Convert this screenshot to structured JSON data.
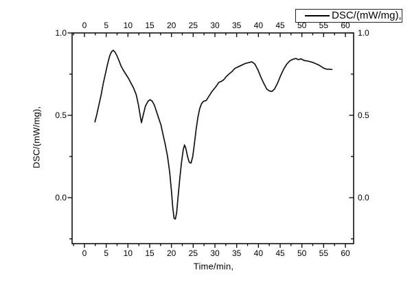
{
  "figure": {
    "background": "#ffffff",
    "frame_color": "#000000",
    "curve_color": "#111111"
  },
  "chart_data": {
    "type": "line",
    "title": "",
    "xlabel": "Time/min,",
    "ylabel": "DSC/(mW/mg),",
    "grid": false,
    "legend": {
      "position": "top-right",
      "entries": [
        {
          "label": "DSC/(mW/mg),",
          "color": "#000000",
          "marker": "line"
        }
      ]
    },
    "x_axis": {
      "range": [
        -2.85,
        61.9
      ],
      "ticks_major": [
        0,
        5,
        10,
        15,
        20,
        25,
        30,
        35,
        40,
        45,
        50,
        55,
        60
      ],
      "tick_labels": [
        "0",
        "5",
        "10",
        "15",
        "20",
        "25",
        "30",
        "35",
        "40",
        "45",
        "50",
        "55",
        "60"
      ],
      "ticks_minor": [
        -2.5,
        2.5,
        7.5,
        12.5,
        17.5,
        22.5,
        27.5,
        32.5,
        37.5,
        42.5,
        47.5,
        52.5,
        57.5
      ],
      "mirrored_top_axis": true
    },
    "y_axis": {
      "range": [
        -0.28,
        1.0
      ],
      "ticks_major": [
        0.0,
        0.5,
        1.0
      ],
      "tick_labels": [
        "0.0",
        "0.5",
        "1.0"
      ],
      "ticks_minor": [
        -0.25,
        0.25,
        0.75
      ],
      "mirrored_right_axis": true
    },
    "series": [
      {
        "name": "DSC/(mW/mg),",
        "points": [
          [
            2.4,
            0.46
          ],
          [
            2.8,
            0.5
          ],
          [
            3.3,
            0.56
          ],
          [
            3.8,
            0.62
          ],
          [
            4.3,
            0.69
          ],
          [
            4.8,
            0.75
          ],
          [
            5.3,
            0.81
          ],
          [
            5.8,
            0.86
          ],
          [
            6.2,
            0.885
          ],
          [
            6.6,
            0.895
          ],
          [
            7.0,
            0.885
          ],
          [
            7.4,
            0.865
          ],
          [
            7.9,
            0.835
          ],
          [
            8.4,
            0.8
          ],
          [
            8.9,
            0.775
          ],
          [
            9.5,
            0.75
          ],
          [
            10.1,
            0.725
          ],
          [
            10.7,
            0.695
          ],
          [
            11.3,
            0.665
          ],
          [
            11.9,
            0.625
          ],
          [
            12.4,
            0.565
          ],
          [
            12.8,
            0.5
          ],
          [
            13.1,
            0.455
          ],
          [
            13.5,
            0.5
          ],
          [
            14.0,
            0.555
          ],
          [
            14.6,
            0.585
          ],
          [
            15.1,
            0.595
          ],
          [
            15.6,
            0.585
          ],
          [
            16.1,
            0.56
          ],
          [
            16.6,
            0.52
          ],
          [
            17.1,
            0.48
          ],
          [
            17.6,
            0.44
          ],
          [
            18.1,
            0.38
          ],
          [
            18.6,
            0.32
          ],
          [
            19.1,
            0.25
          ],
          [
            19.6,
            0.155
          ],
          [
            20.0,
            0.04
          ],
          [
            20.3,
            -0.06
          ],
          [
            20.6,
            -0.125
          ],
          [
            20.9,
            -0.13
          ],
          [
            21.2,
            -0.09
          ],
          [
            21.5,
            0.0
          ],
          [
            21.9,
            0.11
          ],
          [
            22.3,
            0.21
          ],
          [
            22.7,
            0.29
          ],
          [
            23.0,
            0.32
          ],
          [
            23.3,
            0.3
          ],
          [
            23.7,
            0.25
          ],
          [
            24.1,
            0.215
          ],
          [
            24.5,
            0.21
          ],
          [
            24.9,
            0.25
          ],
          [
            25.3,
            0.33
          ],
          [
            25.7,
            0.42
          ],
          [
            26.1,
            0.49
          ],
          [
            26.5,
            0.54
          ],
          [
            26.9,
            0.57
          ],
          [
            27.4,
            0.585
          ],
          [
            28.0,
            0.59
          ],
          [
            28.6,
            0.615
          ],
          [
            29.2,
            0.64
          ],
          [
            29.8,
            0.66
          ],
          [
            30.4,
            0.68
          ],
          [
            30.9,
            0.7
          ],
          [
            31.4,
            0.705
          ],
          [
            32.0,
            0.715
          ],
          [
            32.6,
            0.735
          ],
          [
            33.2,
            0.75
          ],
          [
            33.9,
            0.765
          ],
          [
            34.6,
            0.785
          ],
          [
            35.4,
            0.795
          ],
          [
            36.2,
            0.805
          ],
          [
            37.0,
            0.815
          ],
          [
            37.8,
            0.82
          ],
          [
            38.5,
            0.825
          ],
          [
            39.2,
            0.81
          ],
          [
            39.9,
            0.775
          ],
          [
            40.6,
            0.73
          ],
          [
            41.3,
            0.69
          ],
          [
            41.9,
            0.66
          ],
          [
            42.5,
            0.648
          ],
          [
            43.1,
            0.645
          ],
          [
            43.7,
            0.66
          ],
          [
            44.4,
            0.695
          ],
          [
            45.1,
            0.74
          ],
          [
            45.8,
            0.78
          ],
          [
            46.5,
            0.81
          ],
          [
            47.2,
            0.83
          ],
          [
            47.9,
            0.84
          ],
          [
            48.6,
            0.845
          ],
          [
            49.2,
            0.838
          ],
          [
            49.8,
            0.843
          ],
          [
            50.5,
            0.833
          ],
          [
            51.2,
            0.83
          ],
          [
            51.9,
            0.826
          ],
          [
            52.6,
            0.82
          ],
          [
            53.3,
            0.812
          ],
          [
            53.9,
            0.805
          ],
          [
            54.5,
            0.795
          ],
          [
            55.1,
            0.785
          ],
          [
            55.7,
            0.78
          ],
          [
            56.3,
            0.78
          ],
          [
            56.9,
            0.778
          ]
        ]
      }
    ]
  }
}
